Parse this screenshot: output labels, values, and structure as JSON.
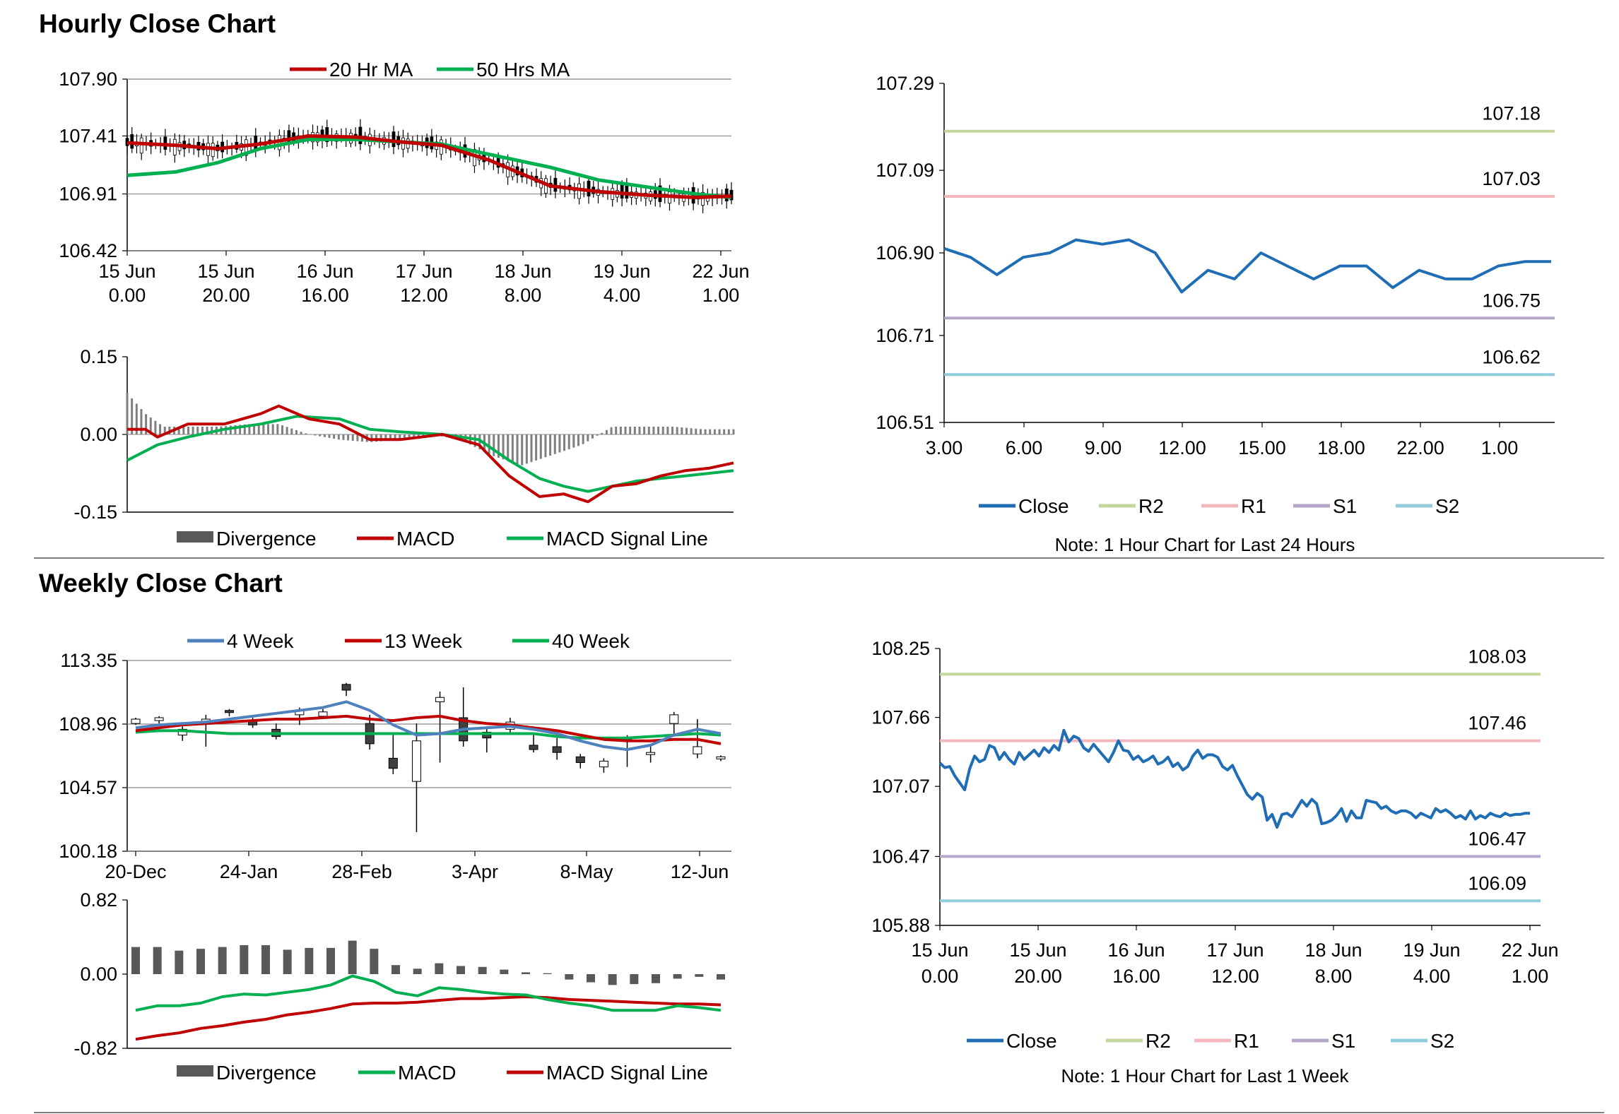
{
  "sections": {
    "hourly_title": "Hourly Close Chart",
    "weekly_title": "Weekly Close Chart"
  },
  "colors": {
    "ma_red": "#c00000",
    "ma_green": "#00b050",
    "ma_blue": "#4f81bd",
    "close_blue": "#1f6db5",
    "r2": "#c3d69b",
    "r1": "#f2b8bd",
    "s1": "#b4a7c9",
    "s2": "#92cddc",
    "bar": "#595959",
    "grid": "#888888"
  },
  "chart_data": [
    {
      "id": "hourly_price",
      "type": "candlestick",
      "title": "",
      "yticks": [
        "107.90",
        "107.41",
        "106.91",
        "106.42"
      ],
      "ylim": [
        106.42,
        107.9
      ],
      "xticks": [
        [
          "15 Jun",
          "0.00"
        ],
        [
          "15 Jun",
          "20.00"
        ],
        [
          "16 Jun",
          "16.00"
        ],
        [
          "17 Jun",
          "12.00"
        ],
        [
          "18 Jun",
          "8.00"
        ],
        [
          "19 Jun",
          "4.00"
        ],
        [
          "22 Jun",
          "1.00"
        ]
      ],
      "legend": [
        "20 Hr MA",
        "50 Hrs MA"
      ],
      "series": [
        {
          "name": "20 Hr MA",
          "x": [
            0,
            8,
            15,
            22,
            30,
            38,
            45,
            52,
            60,
            70,
            78,
            86,
            94,
            100
          ],
          "values": [
            107.35,
            107.33,
            107.3,
            107.34,
            107.41,
            107.4,
            107.36,
            107.33,
            107.2,
            106.98,
            106.93,
            106.9,
            106.88,
            106.89
          ]
        },
        {
          "name": "50 Hrs MA",
          "x": [
            0,
            8,
            15,
            22,
            30,
            38,
            45,
            52,
            60,
            70,
            78,
            86,
            94,
            100
          ],
          "values": [
            107.07,
            107.1,
            107.18,
            107.3,
            107.38,
            107.38,
            107.36,
            107.34,
            107.25,
            107.14,
            107.03,
            106.97,
            106.91,
            106.88
          ]
        }
      ],
      "candles": {
        "x_positions": 128,
        "low_level": 106.9,
        "high_level": 107.25
      }
    },
    {
      "id": "hourly_macd",
      "type": "bar+line",
      "yticks": [
        "0.15",
        "0.00",
        "-0.15"
      ],
      "ylim": [
        -0.15,
        0.15
      ],
      "legend": [
        "Divergence",
        "MACD",
        "MACD Signal Line"
      ],
      "series": [
        {
          "name": "MACD",
          "x": [
            0,
            3,
            5,
            10,
            16,
            22,
            25,
            30,
            35,
            40,
            45,
            52,
            58,
            63,
            68,
            72,
            76,
            80,
            84,
            88,
            92,
            96,
            100
          ],
          "values": [
            0.01,
            0.01,
            -0.005,
            0.02,
            0.02,
            0.04,
            0.055,
            0.03,
            0.02,
            -0.01,
            -0.01,
            0.0,
            -0.02,
            -0.08,
            -0.12,
            -0.115,
            -0.13,
            -0.1,
            -0.095,
            -0.08,
            -0.07,
            -0.065,
            -0.055
          ]
        },
        {
          "name": "MACD Signal Line",
          "x": [
            0,
            5,
            10,
            16,
            22,
            28,
            35,
            40,
            45,
            52,
            58,
            63,
            68,
            72,
            76,
            80,
            84,
            88,
            92,
            96,
            100
          ],
          "values": [
            -0.05,
            -0.02,
            -0.005,
            0.01,
            0.02,
            0.035,
            0.03,
            0.01,
            0.005,
            0.0,
            -0.01,
            -0.05,
            -0.085,
            -0.1,
            -0.11,
            -0.1,
            -0.09,
            -0.085,
            -0.08,
            -0.075,
            -0.07
          ]
        },
        {
          "name": "Divergence",
          "x": [
            0,
            3,
            6,
            10,
            15,
            20,
            25,
            30,
            35,
            40,
            45,
            50,
            55,
            60,
            65,
            70,
            75,
            80,
            85,
            90,
            95,
            100
          ],
          "values": [
            0.08,
            0.04,
            0.015,
            0.015,
            0.015,
            0.02,
            0.02,
            0.0,
            -0.01,
            -0.015,
            -0.01,
            0.0,
            -0.01,
            -0.04,
            -0.06,
            -0.04,
            -0.02,
            0.015,
            0.015,
            0.015,
            0.01,
            0.01
          ]
        }
      ]
    },
    {
      "id": "hourly_close",
      "type": "line",
      "yticks": [
        "107.29",
        "107.09",
        "106.90",
        "106.71",
        "106.51"
      ],
      "ylim": [
        106.51,
        107.29
      ],
      "xticks": [
        "3.00",
        "6.00",
        "9.00",
        "12.00",
        "15.00",
        "18.00",
        "22.00",
        "1.00"
      ],
      "legend": [
        "Close",
        "R2",
        "R1",
        "S1",
        "S2"
      ],
      "levels": {
        "R2": "107.18",
        "R1": "107.03",
        "S1": "106.75",
        "S2": "106.62"
      },
      "series": [
        {
          "name": "Close",
          "values": [
            106.91,
            106.89,
            106.85,
            106.89,
            106.9,
            106.93,
            106.92,
            106.93,
            106.9,
            106.81,
            106.86,
            106.84,
            106.9,
            106.87,
            106.84,
            106.87,
            106.87,
            106.82,
            106.86,
            106.84,
            106.84,
            106.87,
            106.88,
            106.88
          ]
        }
      ],
      "note": "Note: 1 Hour Chart for Last 24 Hours"
    },
    {
      "id": "weekly_price",
      "type": "candlestick",
      "yticks": [
        "113.35",
        "108.96",
        "104.57",
        "100.18"
      ],
      "ylim": [
        100.18,
        113.35
      ],
      "xticks": [
        "20-Dec",
        "24-Jan",
        "28-Feb",
        "3-Apr",
        "8-May",
        "12-Jun"
      ],
      "legend": [
        "4 Week",
        "13 Week",
        "40 Week"
      ],
      "series": [
        {
          "name": "4 Week",
          "values": [
            108.7,
            108.9,
            109.0,
            109.1,
            109.3,
            109.5,
            109.7,
            109.9,
            110.1,
            110.5,
            109.9,
            108.9,
            108.2,
            108.3,
            108.6,
            108.7,
            108.8,
            108.6,
            108.3,
            107.8,
            107.4,
            107.2,
            107.5,
            108.2,
            108.6,
            108.3
          ]
        },
        {
          "name": "13 Week",
          "values": [
            108.5,
            108.7,
            108.9,
            109.0,
            109.1,
            109.2,
            109.3,
            109.3,
            109.4,
            109.5,
            109.3,
            109.2,
            109.4,
            109.5,
            109.2,
            109.0,
            108.9,
            108.7,
            108.5,
            108.2,
            107.9,
            107.8,
            107.8,
            107.9,
            107.9,
            107.6
          ]
        },
        {
          "name": "40 Week",
          "values": [
            108.4,
            108.5,
            108.5,
            108.4,
            108.3,
            108.3,
            108.3,
            108.3,
            108.3,
            108.3,
            108.3,
            108.3,
            108.3,
            108.3,
            108.3,
            108.3,
            108.3,
            108.3,
            108.1,
            108.0,
            108.0,
            108.0,
            108.1,
            108.2,
            108.3,
            108.2
          ]
        }
      ],
      "candles": [
        [
          109.0,
          109.3,
          109.4,
          108.9
        ],
        [
          109.2,
          109.4,
          109.5,
          109.0
        ],
        [
          108.2,
          108.6,
          108.8,
          107.8
        ],
        [
          109.0,
          109.3,
          109.6,
          107.4
        ],
        [
          109.9,
          109.8,
          110.0,
          109.5
        ],
        [
          109.2,
          108.9,
          109.4,
          108.7
        ],
        [
          108.6,
          108.1,
          109.0,
          107.9
        ],
        [
          109.6,
          109.9,
          110.1,
          108.9
        ],
        [
          109.5,
          109.8,
          110.0,
          109.3
        ],
        [
          111.7,
          111.3,
          111.8,
          110.9
        ],
        [
          109.0,
          107.6,
          109.6,
          107.2
        ],
        [
          106.6,
          105.9,
          108.4,
          105.5
        ],
        [
          105.0,
          107.8,
          109.0,
          101.5
        ],
        [
          110.5,
          110.8,
          111.2,
          106.3
        ],
        [
          109.4,
          107.8,
          111.5,
          107.4
        ],
        [
          108.4,
          108.0,
          108.7,
          107.0
        ],
        [
          108.6,
          109.1,
          109.4,
          108.3
        ],
        [
          107.5,
          107.2,
          108.3,
          107.0
        ],
        [
          107.4,
          107.0,
          108.0,
          106.5
        ],
        [
          106.7,
          106.3,
          106.9,
          105.9
        ],
        [
          106.0,
          106.4,
          106.6,
          105.6
        ],
        [
          108.0,
          107.8,
          108.2,
          106.0
        ],
        [
          107.0,
          107.0,
          107.5,
          106.3
        ],
        [
          109.0,
          109.6,
          109.8,
          108.3
        ],
        [
          106.9,
          107.4,
          109.3,
          106.6
        ],
        [
          106.6,
          106.7,
          106.8,
          106.4
        ]
      ]
    },
    {
      "id": "weekly_macd",
      "type": "bar+line",
      "yticks": [
        "0.82",
        "0.00",
        "-0.82"
      ],
      "ylim": [
        -0.82,
        0.82
      ],
      "legend": [
        "Divergence",
        "MACD",
        "MACD Signal Line"
      ],
      "series": [
        {
          "name": "Divergence",
          "values": [
            0.3,
            0.3,
            0.26,
            0.28,
            0.3,
            0.32,
            0.32,
            0.27,
            0.29,
            0.29,
            0.37,
            0.28,
            0.1,
            0.06,
            0.12,
            0.09,
            0.08,
            0.05,
            0.02,
            0.01,
            -0.06,
            -0.09,
            -0.12,
            -0.11,
            -0.1,
            -0.05,
            -0.03,
            -0.06
          ]
        },
        {
          "name": "MACD",
          "values": [
            -0.4,
            -0.35,
            -0.35,
            -0.32,
            -0.25,
            -0.22,
            -0.23,
            -0.2,
            -0.17,
            -0.12,
            -0.02,
            -0.08,
            -0.2,
            -0.24,
            -0.15,
            -0.17,
            -0.2,
            -0.22,
            -0.23,
            -0.28,
            -0.32,
            -0.35,
            -0.4,
            -0.4,
            -0.4,
            -0.35,
            -0.37,
            -0.4
          ]
        },
        {
          "name": "MACD Signal Line",
          "values": [
            -0.72,
            -0.68,
            -0.65,
            -0.6,
            -0.57,
            -0.53,
            -0.5,
            -0.45,
            -0.42,
            -0.38,
            -0.33,
            -0.32,
            -0.32,
            -0.31,
            -0.29,
            -0.27,
            -0.27,
            -0.26,
            -0.25,
            -0.26,
            -0.28,
            -0.29,
            -0.3,
            -0.31,
            -0.32,
            -0.33,
            -0.33,
            -0.34
          ]
        }
      ]
    },
    {
      "id": "weekly_close",
      "type": "line",
      "yticks": [
        "108.25",
        "107.66",
        "107.07",
        "106.47",
        "105.88"
      ],
      "ylim": [
        105.88,
        108.25
      ],
      "xticks": [
        [
          "15 Jun",
          "0.00"
        ],
        [
          "15 Jun",
          "20.00"
        ],
        [
          "16 Jun",
          "16.00"
        ],
        [
          "17 Jun",
          "12.00"
        ],
        [
          "18 Jun",
          "8.00"
        ],
        [
          "19 Jun",
          "4.00"
        ],
        [
          "22 Jun",
          "1.00"
        ]
      ],
      "legend": [
        "Close",
        "R2",
        "R1",
        "S1",
        "S2"
      ],
      "levels": {
        "R2": "108.03",
        "R1": "107.46",
        "S1": "106.47",
        "S2": "106.09"
      },
      "series": [
        {
          "name": "Close",
          "x": [
            0,
            1,
            2,
            3,
            4,
            5,
            6,
            7,
            8,
            9,
            10,
            11,
            12,
            13,
            14,
            15,
            16,
            17,
            18,
            19,
            20,
            21,
            22,
            23,
            24,
            25,
            26,
            27,
            28,
            29,
            30,
            31,
            32,
            33,
            34,
            35,
            36,
            37,
            38,
            39,
            40,
            41,
            42,
            43,
            44,
            45,
            46,
            47,
            48,
            49,
            50,
            51,
            52,
            53,
            54,
            55,
            56,
            57,
            58,
            59,
            60,
            61,
            62,
            63,
            64,
            65,
            66,
            67,
            68,
            69,
            70,
            71,
            72,
            73,
            74,
            75,
            76,
            77,
            78,
            79,
            80,
            81,
            82,
            83,
            84,
            85,
            86,
            87,
            88,
            89,
            90,
            91,
            92,
            93,
            94,
            95,
            96,
            97,
            98,
            99,
            100,
            101,
            102,
            103,
            104,
            105,
            106,
            107,
            108,
            109,
            110,
            111,
            112,
            113,
            114,
            115,
            116,
            117,
            118,
            119
          ],
          "values": [
            107.27,
            107.23,
            107.24,
            107.16,
            107.1,
            107.04,
            107.22,
            107.33,
            107.28,
            107.3,
            107.42,
            107.4,
            107.3,
            107.36,
            107.3,
            107.26,
            107.36,
            107.3,
            107.34,
            107.38,
            107.33,
            107.4,
            107.36,
            107.42,
            107.38,
            107.55,
            107.45,
            107.5,
            107.48,
            107.4,
            107.37,
            107.43,
            107.38,
            107.33,
            107.28,
            107.36,
            107.46,
            107.38,
            107.37,
            107.3,
            107.33,
            107.28,
            107.3,
            107.33,
            107.26,
            107.28,
            107.32,
            107.24,
            107.27,
            107.21,
            107.24,
            107.33,
            107.38,
            107.31,
            107.34,
            107.34,
            107.32,
            107.24,
            107.21,
            107.25,
            107.16,
            107.08,
            107.0,
            106.96,
            107.01,
            106.98,
            106.78,
            106.83,
            106.72,
            106.83,
            106.84,
            106.81,
            106.88,
            106.95,
            106.9,
            106.96,
            106.92,
            106.75,
            106.76,
            106.78,
            106.82,
            106.88,
            106.77,
            106.86,
            106.8,
            106.8,
            106.95,
            106.94,
            106.93,
            106.88,
            106.9,
            106.86,
            106.84,
            106.86,
            106.86,
            106.84,
            106.8,
            106.84,
            106.82,
            106.8,
            106.88,
            106.85,
            106.87,
            106.84,
            106.8,
            106.82,
            106.79,
            106.86,
            106.79,
            106.82,
            106.8,
            106.84,
            106.82,
            106.81,
            106.84,
            106.82,
            106.83,
            106.83,
            106.84,
            106.84
          ]
        }
      ],
      "note": "Note: 1 Hour Chart for Last 1 Week"
    }
  ]
}
